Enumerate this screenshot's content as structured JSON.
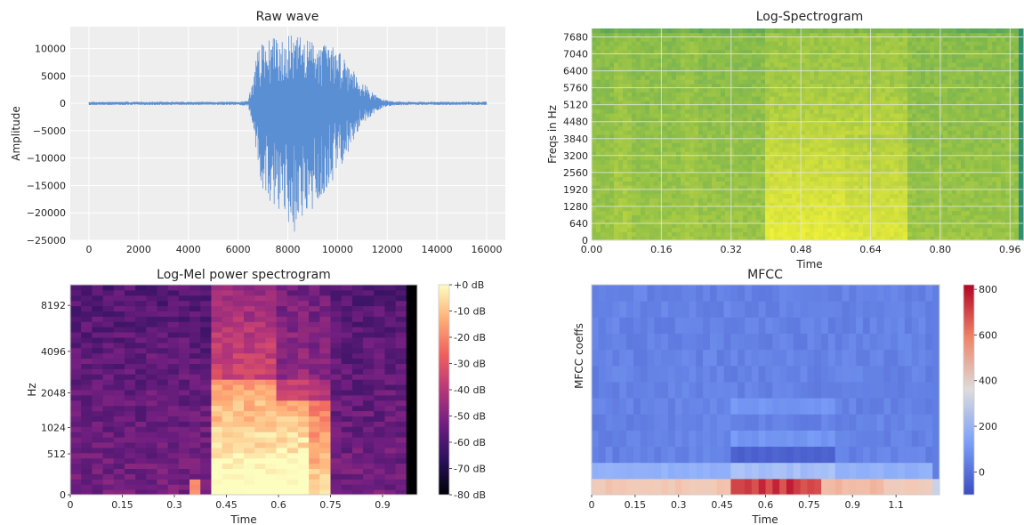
{
  "chart_data": [
    {
      "type": "line",
      "title": "Raw wave",
      "xlabel": "",
      "ylabel": "Amplitude",
      "xlim": [
        -750,
        16750
      ],
      "ylim": [
        -25000,
        14000
      ],
      "xticks": [
        "0",
        "2000",
        "4000",
        "6000",
        "8000",
        "10000",
        "12000",
        "14000",
        "16000"
      ],
      "xtick_values": [
        0,
        2000,
        4000,
        6000,
        8000,
        10000,
        12000,
        14000,
        16000
      ],
      "yticks": [
        "10000",
        "5000",
        "0",
        "−5000",
        "−10000",
        "−15000",
        "−20000",
        "−25000"
      ],
      "ytick_values": [
        10000,
        5000,
        0,
        -5000,
        -10000,
        -15000,
        -20000,
        -25000
      ],
      "grid": true,
      "series": [
        {
          "color": "#5b8fd4",
          "envelope": {
            "x": [
              0,
              6000,
              6400,
              6600,
              6800,
              7000,
              7400,
              7800,
              8200,
              8600,
              9000,
              9400,
              9800,
              10200,
              10600,
              11000,
              11400,
              11800,
              12200,
              13000,
              16000
            ],
            "upper": [
              300,
              300,
              500,
              4500,
              10000,
              11000,
              12000,
              12000,
              12500,
              12000,
              11500,
              11000,
              10500,
              9000,
              6500,
              4000,
              2000,
              800,
              400,
              300,
              300
            ],
            "lower": [
              -300,
              -300,
              -500,
              -4500,
              -13000,
              -16500,
              -19000,
              -20000,
              -24000,
              -22000,
              -20000,
              -17000,
              -14000,
              -11000,
              -7000,
              -4000,
              -2000,
              -800,
              -400,
              -300,
              -300
            ]
          }
        }
      ]
    },
    {
      "type": "heatmap",
      "title": "Log-Spectrogram",
      "xlabel": "Time",
      "ylabel": "Freqs in Hz",
      "xlim": [
        0,
        0.99
      ],
      "ylim": [
        0,
        8000
      ],
      "xticks": [
        "0.00",
        "0.16",
        "0.32",
        "0.48",
        "0.64",
        "0.80",
        "0.96"
      ],
      "xtick_values": [
        0,
        0.16,
        0.32,
        0.48,
        0.64,
        0.8,
        0.96
      ],
      "yticks": [
        "0",
        "640",
        "1280",
        "1920",
        "2560",
        "3200",
        "3840",
        "4480",
        "5120",
        "5760",
        "6400",
        "7040",
        "7680"
      ],
      "ytick_values": [
        0,
        640,
        1280,
        1920,
        2560,
        3200,
        3840,
        4480,
        5120,
        5760,
        6400,
        7040,
        7680
      ],
      "grid": true,
      "colormap": [
        "#2f8b70",
        "#5ca65c",
        "#8fbf48",
        "#c4d83e",
        "#eef03a"
      ],
      "speech_interval": [
        0.4,
        0.72
      ],
      "silence_start": 0.975
    },
    {
      "type": "heatmap",
      "title": "Log-Mel power spectrogram",
      "xlabel": "Time",
      "ylabel": "Hz",
      "xlim": [
        0,
        1.0
      ],
      "ylim": [
        0,
        11025
      ],
      "xticks": [
        "0",
        "0.15",
        "0.3",
        "0.45",
        "0.6",
        "0.75",
        "0.9"
      ],
      "xtick_values": [
        0,
        0.15,
        0.3,
        0.45,
        0.6,
        0.75,
        0.9
      ],
      "yticks": [
        "0",
        "512",
        "1024",
        "2048",
        "4096",
        "8192"
      ],
      "ytick_values": [
        0,
        512,
        1024,
        2048,
        4096,
        8192
      ],
      "y_scale": "mel",
      "colorbar": {
        "labels": [
          "+0 dB",
          "-10 dB",
          "-20 dB",
          "-30 dB",
          "-40 dB",
          "-50 dB",
          "-60 dB",
          "-70 dB",
          "-80 dB"
        ],
        "values": [
          0,
          -10,
          -20,
          -30,
          -40,
          -50,
          -60,
          -70,
          -80
        ],
        "range": [
          -80,
          0
        ]
      },
      "colormap": [
        "#000004",
        "#2c115f",
        "#721f81",
        "#b73779",
        "#f1605d",
        "#feb078",
        "#fcfdbf"
      ],
      "speech_interval": [
        0.42,
        0.75
      ],
      "silence_start": 0.975
    },
    {
      "type": "heatmap",
      "title": "MFCC",
      "xlabel": "Time",
      "ylabel": "MFCC coeffs",
      "xlim": [
        0,
        1.2
      ],
      "ylim": [
        0,
        13
      ],
      "xticks": [
        "0",
        "0.15",
        "0.3",
        "0.45",
        "0.6",
        "0.75",
        "0.9",
        "1.1"
      ],
      "xtick_values": [
        0,
        0.15,
        0.3,
        0.45,
        0.6,
        0.75,
        0.9,
        1.05
      ],
      "yticks": [],
      "colorbar": {
        "labels": [
          "800",
          "600",
          "400",
          "200",
          "0"
        ],
        "values": [
          800,
          600,
          400,
          200,
          0
        ],
        "range": [
          -100,
          820
        ]
      },
      "colormap": [
        "#3b4cc0",
        "#7b9ff9",
        "#c0d4f5",
        "#f2cbb7",
        "#ee8468",
        "#b40426"
      ],
      "speech_interval": [
        0.48,
        0.84
      ],
      "silence_start": 1.165
    }
  ]
}
